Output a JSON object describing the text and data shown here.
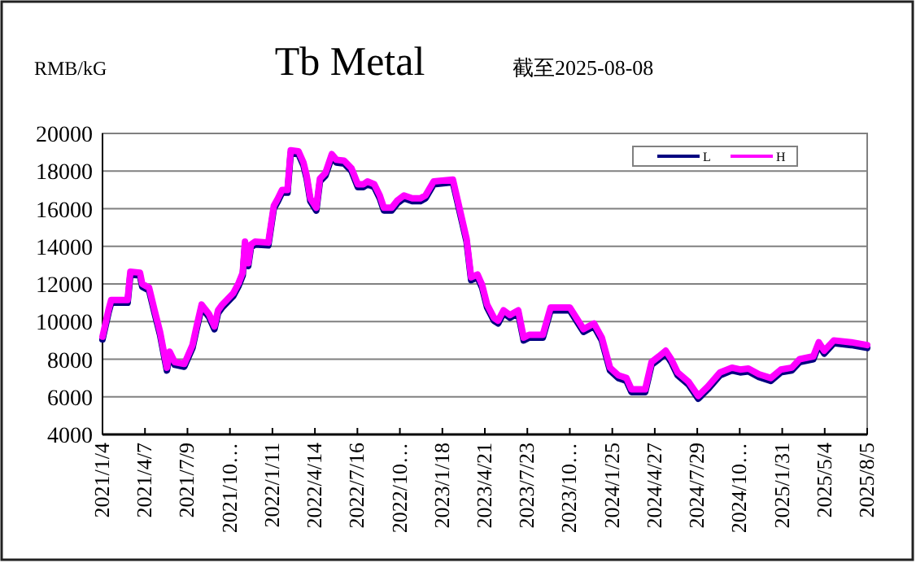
{
  "chart_data": {
    "type": "line",
    "title": "Tb Metal",
    "subtitle": "截至2025-08-08",
    "ylabel": "RMB/kG",
    "x": [
      "2021-01-04",
      "2021-01-17",
      "2021-01-23",
      "2021-02-28",
      "2021-03-06",
      "2021-03-27",
      "2021-04-01",
      "2021-04-16",
      "2021-04-28",
      "2021-05-10",
      "2021-05-19",
      "2021-05-25",
      "2021-05-31",
      "2021-06-11",
      "2021-07-02",
      "2021-07-20",
      "2021-07-29",
      "2021-08-09",
      "2021-08-25",
      "2021-09-06",
      "2021-09-14",
      "2021-09-23",
      "2021-10-17",
      "2021-10-29",
      "2021-11-07",
      "2021-11-12",
      "2021-11-19",
      "2021-11-25",
      "2021-12-04",
      "2022-01-02",
      "2022-01-14",
      "2022-01-22",
      "2022-02-01",
      "2022-02-13",
      "2022-02-20",
      "2022-03-09",
      "2022-03-20",
      "2022-03-27",
      "2022-04-04",
      "2022-04-17",
      "2022-04-25",
      "2022-05-07",
      "2022-05-21",
      "2022-05-31",
      "2022-06-17",
      "2022-07-03",
      "2022-07-17",
      "2022-07-29",
      "2022-08-07",
      "2022-08-22",
      "2022-09-03",
      "2022-09-12",
      "2022-09-29",
      "2022-10-12",
      "2022-10-26",
      "2022-11-13",
      "2022-12-01",
      "2022-12-12",
      "2022-12-30",
      "2023-02-10",
      "2023-02-21",
      "2023-03-12",
      "2023-03-22",
      "2023-04-05",
      "2023-04-15",
      "2023-04-26",
      "2023-05-11",
      "2023-05-20",
      "2023-06-01",
      "2023-06-15",
      "2023-07-03",
      "2023-07-15",
      "2023-07-27",
      "2023-08-26",
      "2023-09-12",
      "2023-10-24",
      "2023-11-23",
      "2023-12-16",
      "2024-01-02",
      "2024-01-20",
      "2024-02-07",
      "2024-02-25",
      "2024-03-07",
      "2024-04-06",
      "2024-04-20",
      "2024-05-06",
      "2024-05-21",
      "2024-06-02",
      "2024-06-16",
      "2024-07-10",
      "2024-07-31",
      "2024-08-21",
      "2024-09-17",
      "2024-10-13",
      "2024-10-31",
      "2024-11-18",
      "2024-12-11",
      "2025-01-06",
      "2025-01-28",
      "2025-02-21",
      "2025-03-10",
      "2025-04-09",
      "2025-04-21",
      "2025-05-03",
      "2025-05-24",
      "2025-07-01",
      "2025-08-05"
    ],
    "series": [
      {
        "name": "L",
        "color": "#000080",
        "values": [
          9050,
          10450,
          11000,
          11000,
          12500,
          12450,
          11850,
          11650,
          10450,
          9300,
          8150,
          7400,
          8250,
          7700,
          7600,
          8600,
          9600,
          10750,
          10250,
          9600,
          10450,
          10750,
          11350,
          11900,
          12450,
          14100,
          12950,
          13950,
          14100,
          14050,
          16000,
          16350,
          16850,
          16850,
          18950,
          18900,
          18300,
          17600,
          16400,
          15900,
          17450,
          17750,
          18750,
          18450,
          18400,
          18000,
          17150,
          17150,
          17300,
          17150,
          16550,
          15900,
          15900,
          16300,
          16550,
          16400,
          16400,
          16550,
          17300,
          17400,
          16250,
          14250,
          12200,
          12350,
          11800,
          10750,
          10050,
          9900,
          10450,
          10200,
          10450,
          9000,
          9150,
          9150,
          10600,
          10600,
          9450,
          9750,
          9000,
          7400,
          7000,
          6850,
          6250,
          6250,
          7700,
          8000,
          8300,
          7850,
          7150,
          6650,
          5900,
          6400,
          7150,
          7400,
          7300,
          7350,
          7050,
          6850,
          7300,
          7400,
          7850,
          8000,
          8750,
          8300,
          8850,
          8750,
          8600
        ]
      },
      {
        "name": "H",
        "color": "#ff00ff",
        "values": [
          9200,
          10600,
          11150,
          11150,
          12650,
          12600,
          12000,
          11800,
          10600,
          9450,
          8300,
          7550,
          8400,
          7850,
          7750,
          8750,
          9750,
          10900,
          10400,
          9750,
          10600,
          10900,
          11500,
          12050,
          12600,
          14250,
          13100,
          14100,
          14250,
          14200,
          16150,
          16500,
          17000,
          17000,
          19100,
          19050,
          18450,
          17750,
          16550,
          16050,
          17600,
          17900,
          18900,
          18600,
          18550,
          18150,
          17300,
          17300,
          17450,
          17300,
          16700,
          16050,
          16050,
          16450,
          16700,
          16550,
          16550,
          16700,
          17450,
          17550,
          16400,
          14400,
          12350,
          12500,
          11950,
          10900,
          10200,
          10050,
          10600,
          10350,
          10600,
          9150,
          9300,
          9300,
          10750,
          10750,
          9600,
          9900,
          9150,
          7550,
          7150,
          7000,
          6400,
          6400,
          7850,
          8150,
          8450,
          8000,
          7300,
          6800,
          6050,
          6550,
          7300,
          7550,
          7450,
          7500,
          7200,
          7000,
          7450,
          7550,
          8000,
          8150,
          8900,
          8450,
          9000,
          8900,
          8750
        ]
      }
    ],
    "xlim": [
      "2021-01-04",
      "2025-08-05"
    ],
    "xticks": [
      {
        "value": "2021-01-04",
        "label": "2021/1/4"
      },
      {
        "value": "2021-04-07",
        "label": "2021/4/7"
      },
      {
        "value": "2021-07-09",
        "label": "2021/7/9"
      },
      {
        "value": "2021-10-10",
        "label": "2021/10…"
      },
      {
        "value": "2022-01-11",
        "label": "2022/1/11"
      },
      {
        "value": "2022-04-14",
        "label": "2022/4/14"
      },
      {
        "value": "2022-07-16",
        "label": "2022/7/16"
      },
      {
        "value": "2022-10-17",
        "label": "2022/10…"
      },
      {
        "value": "2023-01-18",
        "label": "2023/1/18"
      },
      {
        "value": "2023-04-21",
        "label": "2023/4/21"
      },
      {
        "value": "2023-07-23",
        "label": "2023/7/23"
      },
      {
        "value": "2023-10-24",
        "label": "2023/10…"
      },
      {
        "value": "2024-01-25",
        "label": "2024/1/25"
      },
      {
        "value": "2024-04-27",
        "label": "2024/4/27"
      },
      {
        "value": "2024-07-29",
        "label": "2024/7/29"
      },
      {
        "value": "2024-10-30",
        "label": "2024/10…"
      },
      {
        "value": "2025-01-31",
        "label": "2025/1/31"
      },
      {
        "value": "2025-05-04",
        "label": "2025/5/4"
      },
      {
        "value": "2025-08-05",
        "label": "2025/8/5"
      }
    ],
    "ylim": [
      4000,
      20000
    ],
    "yticks": [
      4000,
      6000,
      8000,
      10000,
      12000,
      14000,
      16000,
      18000,
      20000
    ],
    "grid": "y",
    "legend": "top right"
  }
}
